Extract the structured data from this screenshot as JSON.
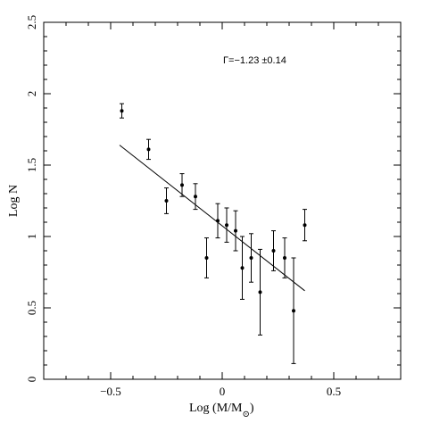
{
  "chart_data": {
    "type": "scatter",
    "title": "",
    "xlabel": "Log (M/M",
    "xlabel_sub": "⊙",
    "xlabel_close": ")",
    "ylabel": "Log N",
    "xlim": [
      -0.8,
      0.8
    ],
    "ylim": [
      0,
      2.5
    ],
    "x_ticks": [
      -0.5,
      0,
      0.5
    ],
    "x_tick_labels": [
      "−0.5",
      "0",
      "0.5"
    ],
    "y_ticks": [
      0,
      0.5,
      1,
      1.5,
      2,
      2.5
    ],
    "y_tick_labels": [
      "0",
      "0.5",
      "1",
      "1.5",
      "2",
      "2.5"
    ],
    "grid": false,
    "annotation": "Γ=−1.23 ±0.14",
    "points": [
      {
        "x": -0.45,
        "y": 1.88,
        "err": 0.05
      },
      {
        "x": -0.33,
        "y": 1.61,
        "err": 0.07
      },
      {
        "x": -0.25,
        "y": 1.25,
        "err": 0.09
      },
      {
        "x": -0.18,
        "y": 1.36,
        "err": 0.08
      },
      {
        "x": -0.12,
        "y": 1.28,
        "err": 0.09
      },
      {
        "x": -0.07,
        "y": 0.85,
        "err": 0.14
      },
      {
        "x": -0.02,
        "y": 1.11,
        "err": 0.12
      },
      {
        "x": 0.02,
        "y": 1.08,
        "err": 0.12
      },
      {
        "x": 0.06,
        "y": 1.04,
        "err": 0.14
      },
      {
        "x": 0.09,
        "y": 0.78,
        "err": 0.22
      },
      {
        "x": 0.13,
        "y": 0.85,
        "err": 0.17
      },
      {
        "x": 0.17,
        "y": 0.61,
        "err": 0.3
      },
      {
        "x": 0.23,
        "y": 0.9,
        "err": 0.14
      },
      {
        "x": 0.28,
        "y": 0.85,
        "err": 0.14
      },
      {
        "x": 0.32,
        "y": 0.48,
        "err": 0.37
      },
      {
        "x": 0.37,
        "y": 1.08,
        "err": 0.11
      }
    ],
    "fit_line": {
      "x1": -0.46,
      "y1": 1.64,
      "x2": 0.37,
      "y2": 0.62
    }
  }
}
